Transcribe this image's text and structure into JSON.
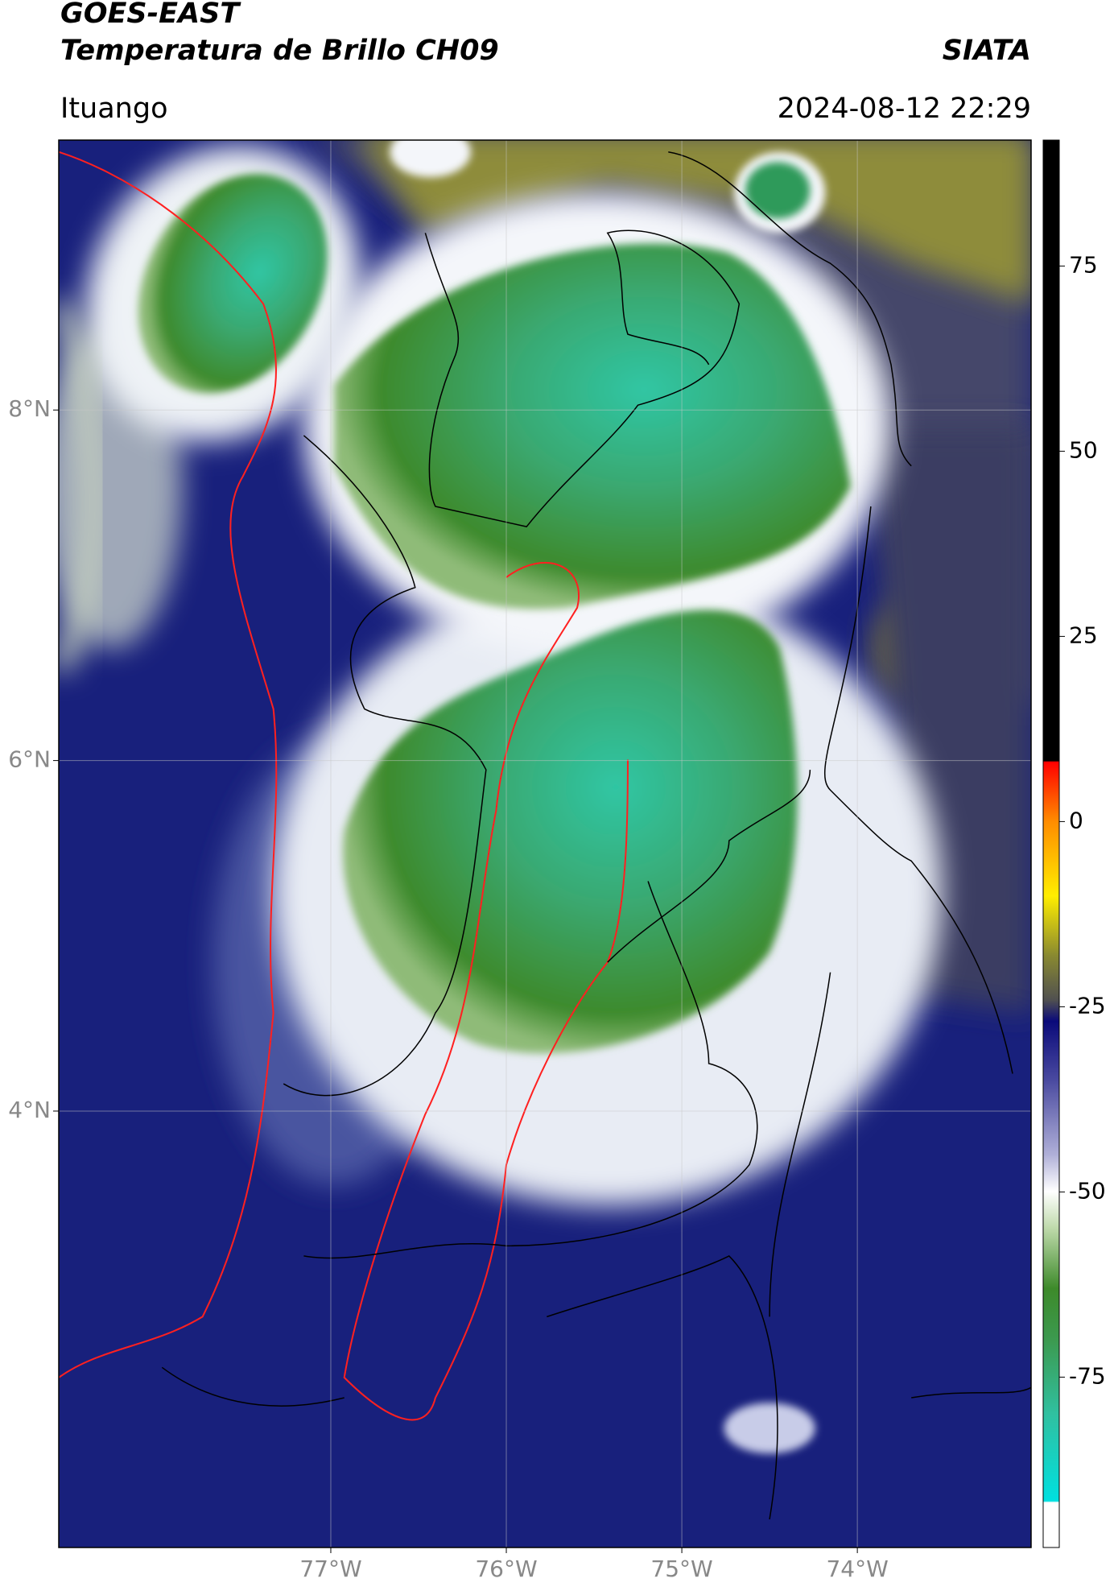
{
  "header": {
    "title": "GOES-EAST",
    "subtitle": "Temperatura de Brillo CH09",
    "source": "SIATA",
    "location": "Ituango",
    "timestamp": "2024-08-12 22:29"
  },
  "map": {
    "lonlim": [
      -78.55,
      -73.01
    ],
    "latlim": [
      1.51,
      9.54
    ],
    "xticks": [
      {
        "value": -77,
        "label": "77°W"
      },
      {
        "value": -76,
        "label": "76°W"
      },
      {
        "value": -75,
        "label": "75°W"
      },
      {
        "value": -74,
        "label": "74°W"
      }
    ],
    "yticks": [
      {
        "value": 8,
        "label": "8°N"
      },
      {
        "value": 6,
        "label": "6°N"
      },
      {
        "value": 4,
        "label": "4°N"
      }
    ],
    "grid": true
  },
  "colorbar": {
    "lim": [
      -98,
      92
    ],
    "ticks": [
      -75,
      -50,
      -25,
      0,
      25,
      50,
      75
    ]
  }
}
